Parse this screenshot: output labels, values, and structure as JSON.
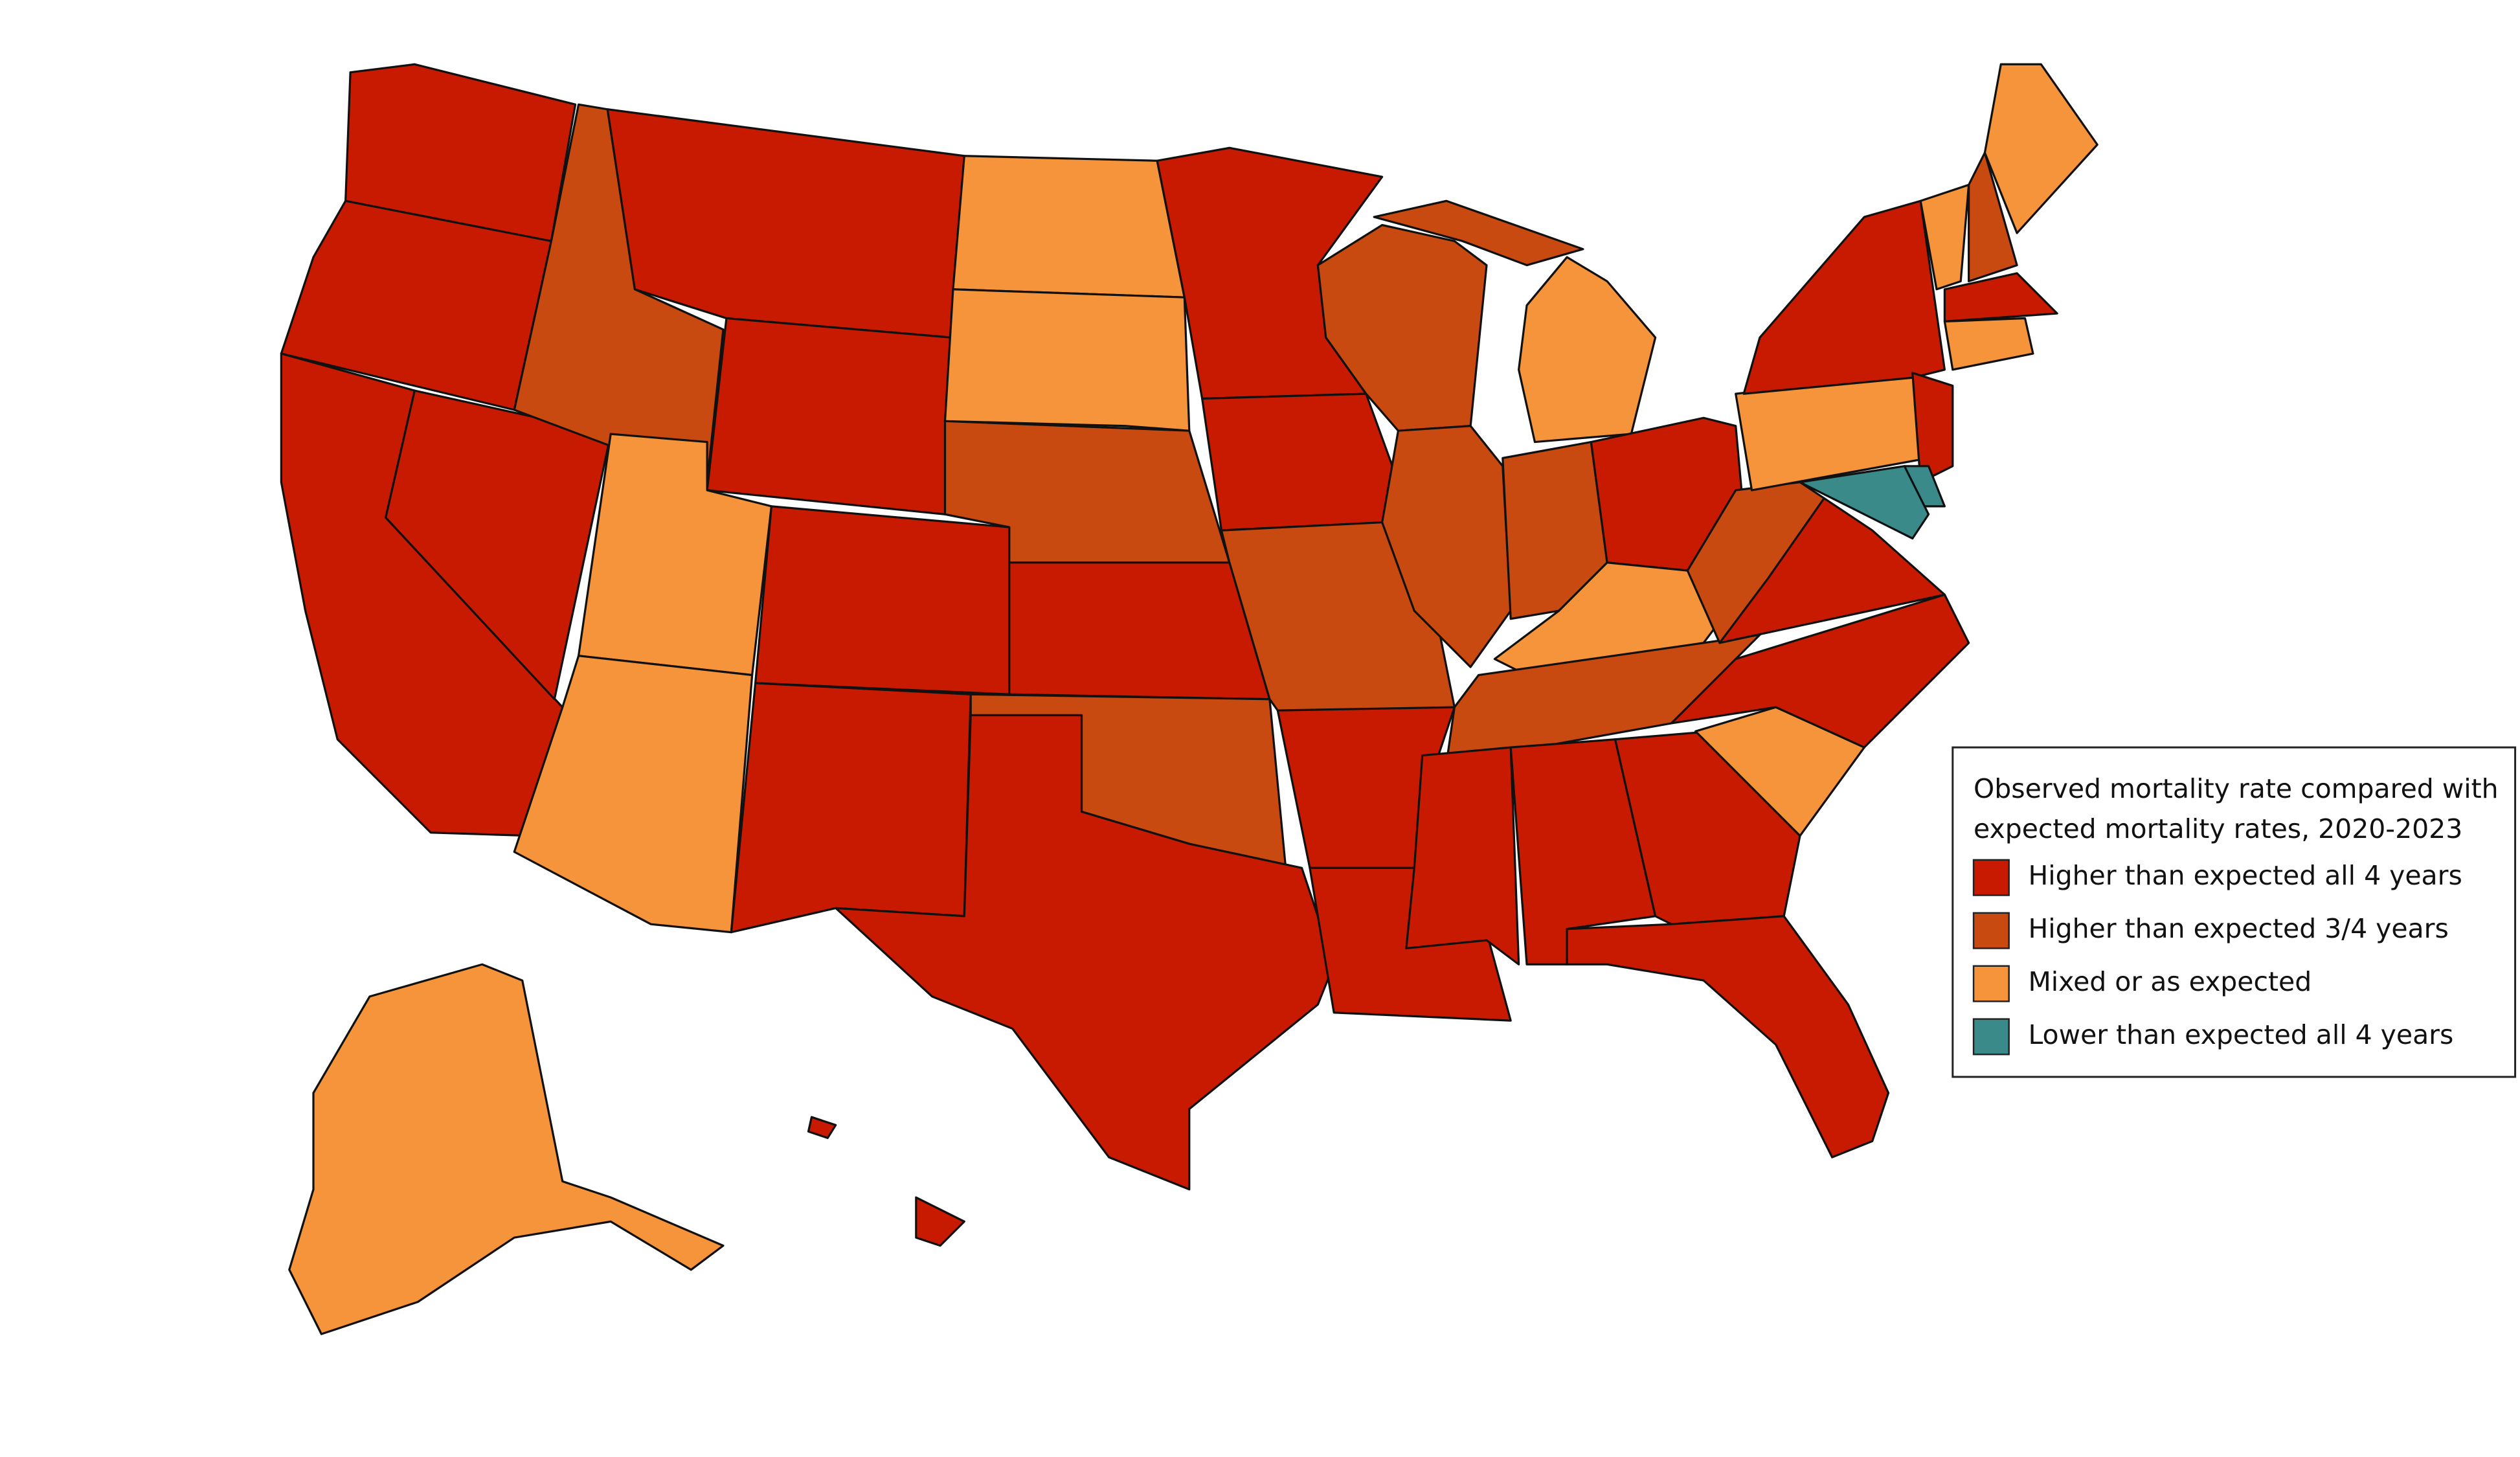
{
  "legend": {
    "title": [
      "Observed mortality rate compared with",
      "expected mortality rates, 2020-2023"
    ],
    "entries": [
      {
        "label": "Higher than expected all 4 years",
        "color": "#c81a00"
      },
      {
        "label": "Higher than expected 3/4 years",
        "color": "#c84a10"
      },
      {
        "label": "Mixed or as expected",
        "color": "#f5943a"
      },
      {
        "label": "Lower than expected all 4 years",
        "color": "#3a8a8a"
      }
    ]
  },
  "region_classes": [
    0,
    0,
    0,
    0,
    1,
    0,
    0,
    2,
    2,
    0,
    0,
    2,
    2,
    1,
    0,
    1,
    0,
    0,
    0,
    1,
    0,
    0,
    1,
    1,
    2,
    1,
    1,
    0,
    2,
    1,
    0,
    0,
    0,
    0,
    2,
    0,
    0,
    1,
    2,
    0,
    0,
    3,
    3,
    2,
    1,
    2,
    0,
    2,
    2,
    0,
    0
  ]
}
